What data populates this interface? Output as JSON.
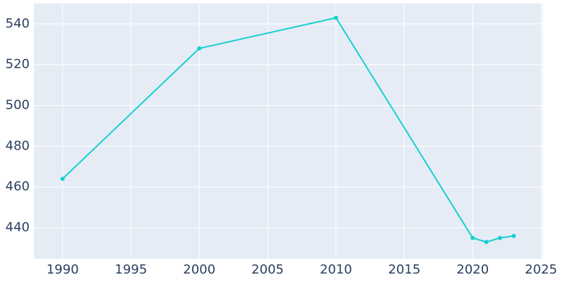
{
  "chart_data": {
    "type": "line",
    "x": [
      1990,
      2000,
      2010,
      2020,
      2021,
      2022,
      2023
    ],
    "series": [
      {
        "color": "#17cfcf",
        "values": [
          464,
          528,
          543,
          435,
          433,
          435,
          436
        ]
      }
    ],
    "xlim": [
      1987.9,
      2025.1
    ],
    "xticks": [
      1990,
      1995,
      2000,
      2005,
      2010,
      2015,
      2020,
      2025
    ],
    "ylim": [
      424.8,
      550
    ],
    "yticks": [
      440,
      460,
      480,
      500,
      520,
      540
    ],
    "grid": true
  }
}
